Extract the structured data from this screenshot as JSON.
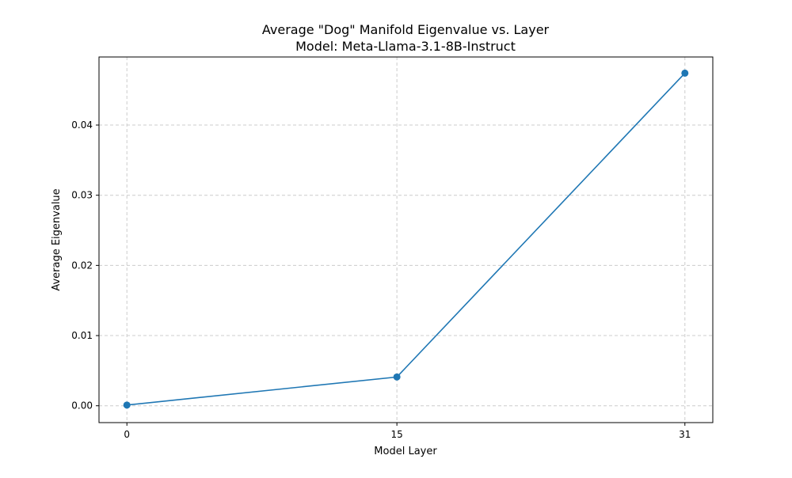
{
  "chart_data": {
    "type": "line",
    "title": "Average \"Dog\" Manifold Eigenvalue vs. Layer",
    "subtitle": "Model: Meta-Llama-3.1-8B-Instruct",
    "xlabel": "Model Layer",
    "ylabel": "Average Eigenvalue",
    "x": [
      0,
      15,
      31
    ],
    "x_ticks": [
      "0",
      "15",
      "31"
    ],
    "y_ticks": [
      "0.00",
      "0.01",
      "0.02",
      "0.03",
      "0.04"
    ],
    "ylim": [
      -0.0024,
      0.0497
    ],
    "xlim": [
      -1.55,
      32.55
    ],
    "grid": true,
    "series": [
      {
        "values": [
          0.0001,
          0.0041,
          0.0474
        ],
        "color": "#1f77b4",
        "marker": "circle"
      }
    ]
  }
}
